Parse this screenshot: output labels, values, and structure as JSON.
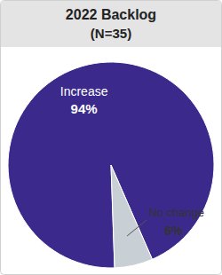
{
  "chart_data": {
    "type": "pie",
    "title": "2022 Backlog",
    "subtitle": "(N=35)",
    "categories": [
      "Increase",
      "No change"
    ],
    "values": [
      94,
      6
    ],
    "value_labels": [
      "94%",
      "6%"
    ],
    "colors": [
      "#3b2a8c",
      "#c8d0d6"
    ],
    "data_labels": true
  }
}
